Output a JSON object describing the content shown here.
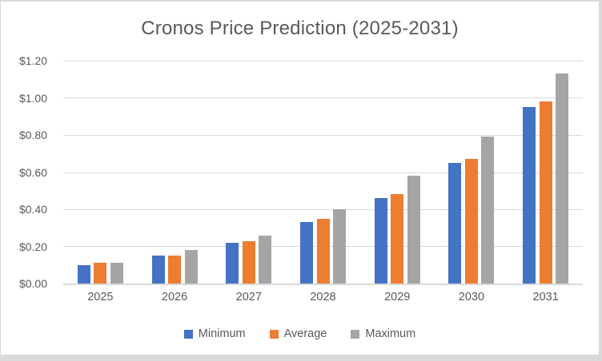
{
  "chart_data": {
    "type": "bar",
    "title": "Cronos Price Prediction (2025-2031)",
    "categories": [
      "2025",
      "2026",
      "2027",
      "2028",
      "2029",
      "2030",
      "2031"
    ],
    "series": [
      {
        "name": "Minimum",
        "color": "#4472C4",
        "values": [
          0.1,
          0.15,
          0.22,
          0.33,
          0.46,
          0.65,
          0.95
        ]
      },
      {
        "name": "Average",
        "color": "#ED7D31",
        "values": [
          0.11,
          0.15,
          0.23,
          0.35,
          0.48,
          0.67,
          0.98
        ]
      },
      {
        "name": "Maximum",
        "color": "#A5A5A5",
        "values": [
          0.11,
          0.18,
          0.26,
          0.4,
          0.58,
          0.79,
          1.13
        ]
      }
    ],
    "xlabel": "",
    "ylabel": "",
    "ylim": [
      0,
      1.2
    ],
    "yticks": [
      {
        "value": 0.0,
        "label": "$0.00"
      },
      {
        "value": 0.2,
        "label": "$0.20"
      },
      {
        "value": 0.4,
        "label": "$0.40"
      },
      {
        "value": 0.6,
        "label": "$0.60"
      },
      {
        "value": 0.8,
        "label": "$0.80"
      },
      {
        "value": 1.0,
        "label": "$1.00"
      },
      {
        "value": 1.2,
        "label": "$1.20"
      }
    ],
    "grid": true,
    "legend_position": "bottom"
  },
  "styles": {
    "text_color": "#595959",
    "gridline_color": "#D9D9D9",
    "frame_color": "#D9D9D9",
    "background_color": "#FFFFFF"
  }
}
